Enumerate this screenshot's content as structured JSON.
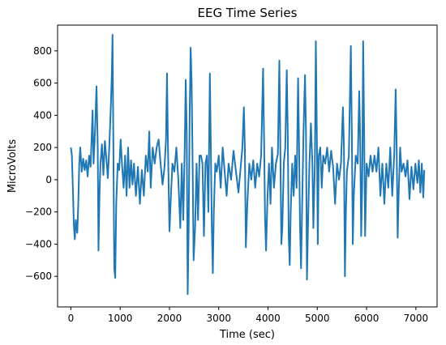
{
  "chart_data": {
    "type": "line",
    "title": "EEG Time Series",
    "xlabel": "Time (sec)",
    "ylabel": "MicroVolts",
    "xlim": [
      -270,
      7430
    ],
    "ylim": [
      -790,
      960
    ],
    "xticks": [
      0,
      1000,
      2000,
      3000,
      4000,
      5000,
      6000,
      7000
    ],
    "yticks": [
      -600,
      -400,
      -200,
      0,
      200,
      400,
      600,
      800
    ],
    "grid": false,
    "legend": "none",
    "series": [
      {
        "color": "#1f77b4",
        "points": [
          [
            0,
            200
          ],
          [
            20,
            150
          ],
          [
            40,
            -50
          ],
          [
            60,
            -280
          ],
          [
            80,
            -370
          ],
          [
            100,
            -250
          ],
          [
            130,
            -330
          ],
          [
            150,
            -150
          ],
          [
            170,
            100
          ],
          [
            190,
            200
          ],
          [
            220,
            50
          ],
          [
            250,
            130
          ],
          [
            280,
            60
          ],
          [
            310,
            120
          ],
          [
            340,
            20
          ],
          [
            370,
            150
          ],
          [
            400,
            80
          ],
          [
            420,
            250
          ],
          [
            440,
            430
          ],
          [
            460,
            100
          ],
          [
            490,
            300
          ],
          [
            520,
            580
          ],
          [
            545,
            200
          ],
          [
            560,
            -440
          ],
          [
            580,
            -100
          ],
          [
            600,
            100
          ],
          [
            630,
            220
          ],
          [
            660,
            30
          ],
          [
            690,
            240
          ],
          [
            720,
            130
          ],
          [
            750,
            10
          ],
          [
            780,
            210
          ],
          [
            810,
            450
          ],
          [
            830,
            650
          ],
          [
            845,
            900
          ],
          [
            860,
            300
          ],
          [
            880,
            -550
          ],
          [
            900,
            -610
          ],
          [
            920,
            -150
          ],
          [
            950,
            100
          ],
          [
            980,
            60
          ],
          [
            1010,
            250
          ],
          [
            1040,
            80
          ],
          [
            1070,
            -50
          ],
          [
            1100,
            150
          ],
          [
            1130,
            -100
          ],
          [
            1160,
            200
          ],
          [
            1190,
            -50
          ],
          [
            1220,
            120
          ],
          [
            1250,
            -30
          ],
          [
            1280,
            100
          ],
          [
            1320,
            -100
          ],
          [
            1360,
            80
          ],
          [
            1400,
            -150
          ],
          [
            1440,
            60
          ],
          [
            1480,
            -100
          ],
          [
            1520,
            150
          ],
          [
            1560,
            50
          ],
          [
            1590,
            300
          ],
          [
            1620,
            -50
          ],
          [
            1660,
            200
          ],
          [
            1700,
            100
          ],
          [
            1740,
            200
          ],
          [
            1780,
            250
          ],
          [
            1820,
            100
          ],
          [
            1860,
            -30
          ],
          [
            1900,
            80
          ],
          [
            1930,
            250
          ],
          [
            1950,
            660
          ],
          [
            1970,
            200
          ],
          [
            2000,
            -320
          ],
          [
            2030,
            -100
          ],
          [
            2060,
            100
          ],
          [
            2100,
            50
          ],
          [
            2140,
            200
          ],
          [
            2180,
            0
          ],
          [
            2220,
            -300
          ],
          [
            2250,
            100
          ],
          [
            2280,
            -250
          ],
          [
            2310,
            200
          ],
          [
            2330,
            620
          ],
          [
            2350,
            300
          ],
          [
            2370,
            -710
          ],
          [
            2390,
            -300
          ],
          [
            2410,
            400
          ],
          [
            2430,
            820
          ],
          [
            2450,
            600
          ],
          [
            2470,
            100
          ],
          [
            2490,
            -500
          ],
          [
            2520,
            -300
          ],
          [
            2550,
            100
          ],
          [
            2580,
            -250
          ],
          [
            2610,
            150
          ],
          [
            2640,
            150
          ],
          [
            2670,
            100
          ],
          [
            2700,
            -350
          ],
          [
            2730,
            100
          ],
          [
            2760,
            150
          ],
          [
            2790,
            -200
          ],
          [
            2820,
            660
          ],
          [
            2840,
            200
          ],
          [
            2860,
            -300
          ],
          [
            2880,
            -580
          ],
          [
            2900,
            -200
          ],
          [
            2930,
            100
          ],
          [
            2960,
            50
          ],
          [
            3000,
            150
          ],
          [
            3040,
            -50
          ],
          [
            3080,
            200
          ],
          [
            3120,
            50
          ],
          [
            3160,
            -100
          ],
          [
            3200,
            100
          ],
          [
            3250,
            0
          ],
          [
            3300,
            180
          ],
          [
            3350,
            50
          ],
          [
            3400,
            -80
          ],
          [
            3440,
            60
          ],
          [
            3480,
            200
          ],
          [
            3510,
            450
          ],
          [
            3530,
            200
          ],
          [
            3550,
            -420
          ],
          [
            3580,
            -150
          ],
          [
            3620,
            100
          ],
          [
            3660,
            0
          ],
          [
            3700,
            120
          ],
          [
            3740,
            -50
          ],
          [
            3780,
            100
          ],
          [
            3820,
            20
          ],
          [
            3860,
            150
          ],
          [
            3900,
            690
          ],
          [
            3920,
            250
          ],
          [
            3940,
            -250
          ],
          [
            3960,
            -440
          ],
          [
            3990,
            -100
          ],
          [
            4020,
            100
          ],
          [
            4050,
            -150
          ],
          [
            4080,
            200
          ],
          [
            4120,
            -50
          ],
          [
            4160,
            100
          ],
          [
            4200,
            160
          ],
          [
            4230,
            740
          ],
          [
            4250,
            200
          ],
          [
            4270,
            -400
          ],
          [
            4290,
            -300
          ],
          [
            4320,
            100
          ],
          [
            4350,
            200
          ],
          [
            4380,
            680
          ],
          [
            4400,
            300
          ],
          [
            4420,
            -350
          ],
          [
            4440,
            -530
          ],
          [
            4460,
            -200
          ],
          [
            4490,
            100
          ],
          [
            4520,
            -100
          ],
          [
            4550,
            150
          ],
          [
            4580,
            -50
          ],
          [
            4610,
            630
          ],
          [
            4630,
            200
          ],
          [
            4650,
            -300
          ],
          [
            4670,
            -550
          ],
          [
            4690,
            -200
          ],
          [
            4720,
            300
          ],
          [
            4750,
            650
          ],
          [
            4770,
            300
          ],
          [
            4790,
            -620
          ],
          [
            4810,
            -300
          ],
          [
            4840,
            100
          ],
          [
            4870,
            350
          ],
          [
            4900,
            100
          ],
          [
            4920,
            -300
          ],
          [
            4950,
            100
          ],
          [
            4970,
            860
          ],
          [
            4990,
            300
          ],
          [
            5010,
            -400
          ],
          [
            5030,
            150
          ],
          [
            5060,
            200
          ],
          [
            5090,
            -50
          ],
          [
            5120,
            150
          ],
          [
            5160,
            100
          ],
          [
            5200,
            200
          ],
          [
            5240,
            50
          ],
          [
            5280,
            180
          ],
          [
            5320,
            80
          ],
          [
            5360,
            -150
          ],
          [
            5400,
            100
          ],
          [
            5440,
            0
          ],
          [
            5480,
            100
          ],
          [
            5520,
            450
          ],
          [
            5540,
            200
          ],
          [
            5560,
            -600
          ],
          [
            5580,
            -200
          ],
          [
            5600,
            50
          ],
          [
            5640,
            150
          ],
          [
            5680,
            830
          ],
          [
            5700,
            300
          ],
          [
            5720,
            -400
          ],
          [
            5740,
            -100
          ],
          [
            5780,
            150
          ],
          [
            5820,
            100
          ],
          [
            5850,
            550
          ],
          [
            5870,
            250
          ],
          [
            5890,
            -350
          ],
          [
            5910,
            -50
          ],
          [
            5930,
            860
          ],
          [
            5950,
            300
          ],
          [
            5970,
            -350
          ],
          [
            6000,
            100
          ],
          [
            6040,
            20
          ],
          [
            6080,
            150
          ],
          [
            6120,
            50
          ],
          [
            6160,
            150
          ],
          [
            6200,
            50
          ],
          [
            6240,
            200
          ],
          [
            6280,
            -100
          ],
          [
            6320,
            100
          ],
          [
            6360,
            -150
          ],
          [
            6400,
            100
          ],
          [
            6440,
            -50
          ],
          [
            6480,
            200
          ],
          [
            6520,
            -100
          ],
          [
            6560,
            150
          ],
          [
            6590,
            560
          ],
          [
            6610,
            200
          ],
          [
            6630,
            -360
          ],
          [
            6650,
            -100
          ],
          [
            6680,
            200
          ],
          [
            6710,
            50
          ],
          [
            6750,
            100
          ],
          [
            6790,
            20
          ],
          [
            6830,
            120
          ],
          [
            6870,
            -120
          ],
          [
            6910,
            80
          ],
          [
            6950,
            -60
          ],
          [
            6990,
            100
          ],
          [
            7030,
            -20
          ],
          [
            7060,
            120
          ],
          [
            7090,
            -80
          ],
          [
            7120,
            100
          ],
          [
            7150,
            -110
          ],
          [
            7170,
            60
          ]
        ]
      }
    ]
  }
}
